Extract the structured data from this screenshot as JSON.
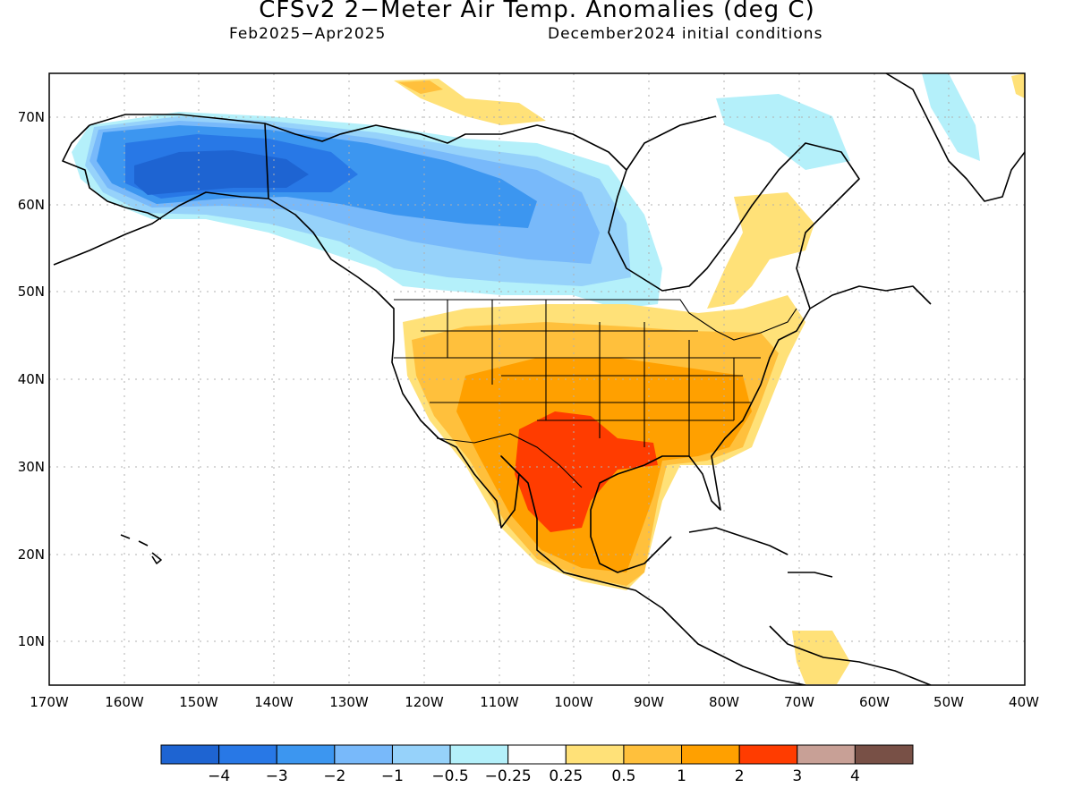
{
  "header": {
    "title": "CFSv2 2−Meter Air Temp. Anomalies (deg C)",
    "period": "Feb2025−Apr2025",
    "initial_conditions": "December2024 initial conditions"
  },
  "map": {
    "lat_labels": [
      "70N",
      "60N",
      "50N",
      "40N",
      "30N",
      "20N",
      "10N"
    ],
    "lon_labels": [
      "170W",
      "160W",
      "150W",
      "140W",
      "130W",
      "120W",
      "110W",
      "100W",
      "90W",
      "80W",
      "70W",
      "60W",
      "50W",
      "40W"
    ],
    "lat_range": [
      5,
      75
    ],
    "lon_range": [
      -170,
      -40
    ],
    "gridlines": "dotted"
  },
  "colorbar": {
    "labels": [
      "−4",
      "−3",
      "−2",
      "−1",
      "−0.5",
      "−0.25",
      "0.25",
      "0.5",
      "1",
      "2",
      "3",
      "4"
    ],
    "colors": [
      "#1e64d2",
      "#2878e6",
      "#3c96f0",
      "#78b9fa",
      "#96d2fa",
      "#b4f0fa",
      "#ffffff",
      "#ffe178",
      "#ffc03c",
      "#ffa000",
      "#ff3c00",
      "#c8a096",
      "#785046"
    ]
  },
  "anomaly_regions": [
    {
      "name": "alaska-cold",
      "level": "-4 to -3"
    },
    {
      "name": "canada-cool",
      "level": "-2 to -0.5"
    },
    {
      "name": "south-central-us-warm",
      "level": "1 to 2"
    },
    {
      "name": "texas-mexico-hot",
      "level": "2 to 3"
    },
    {
      "name": "quebec-warm",
      "level": "0.25 to 0.5"
    }
  ]
}
